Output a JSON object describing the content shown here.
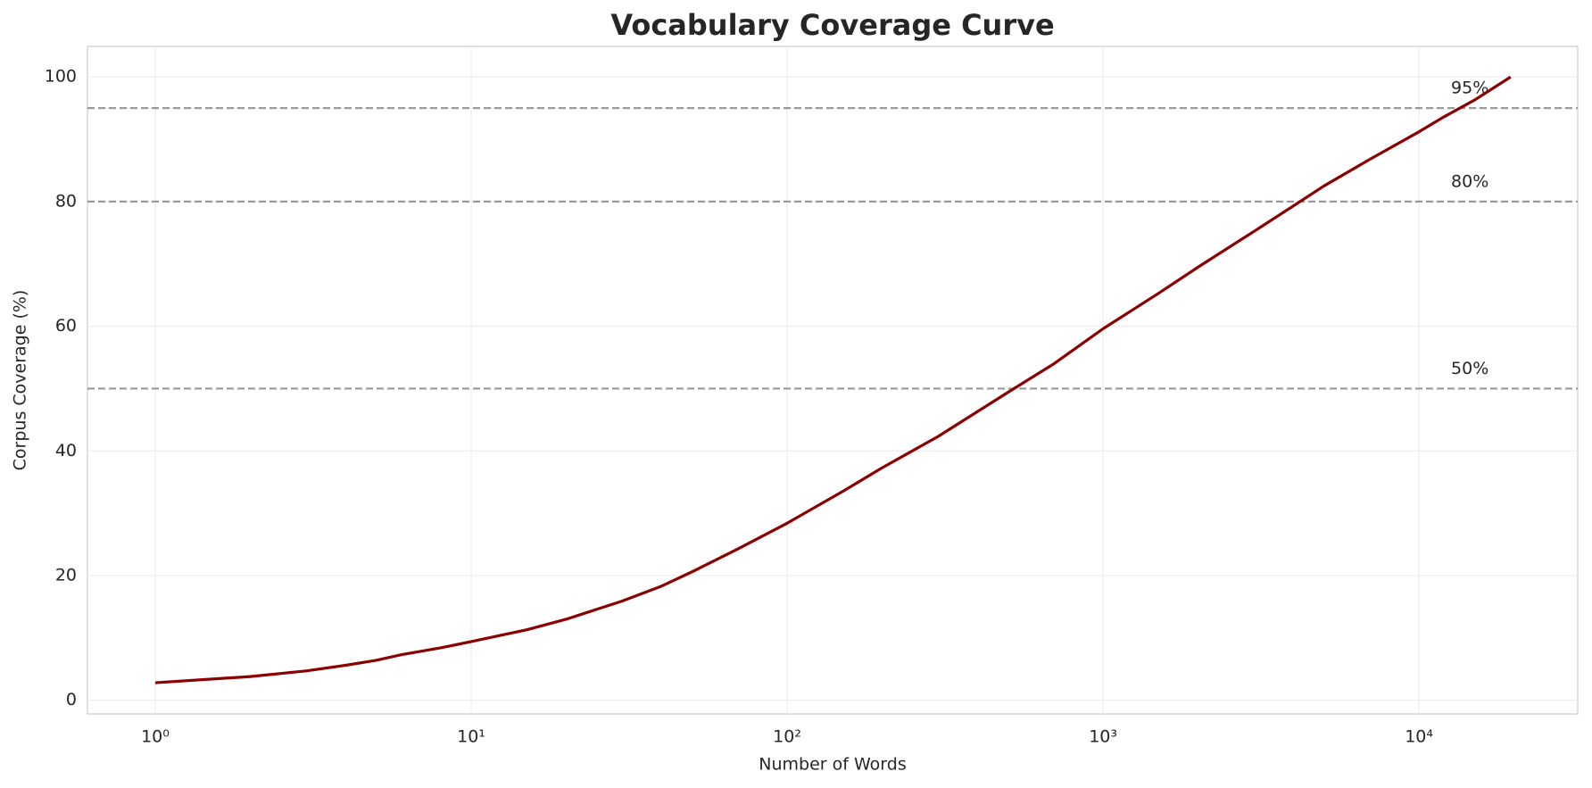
{
  "chart_data": {
    "type": "line",
    "title": "Vocabulary Coverage Curve",
    "x_label": "Number of Words",
    "y_label": "Corpus Coverage (%)",
    "x_scale": "log",
    "grid": true,
    "xlim": [
      0.61,
      31800
    ],
    "ylim": [
      -2.2,
      104.9
    ],
    "xticks": [
      {
        "value": 1,
        "label": "10⁰"
      },
      {
        "value": 10,
        "label": "10¹"
      },
      {
        "value": 100,
        "label": "10²"
      },
      {
        "value": 1000,
        "label": "10³"
      },
      {
        "value": 10000,
        "label": "10⁴"
      }
    ],
    "yticks": [
      0,
      20,
      40,
      60,
      80,
      100
    ],
    "x": [
      1,
      2,
      3,
      4,
      5,
      6,
      8,
      10,
      15,
      20,
      30,
      40,
      50,
      70,
      100,
      150,
      200,
      300,
      500,
      700,
      1000,
      1500,
      2000,
      3000,
      4000,
      5000,
      7000,
      10000,
      12000,
      15000,
      19500
    ],
    "series": [
      {
        "name": "Coverage",
        "color": "#8b0000",
        "values": [
          2.8,
          3.8,
          4.7,
          5.6,
          6.4,
          7.3,
          8.4,
          9.4,
          11.3,
          13.0,
          15.9,
          18.3,
          20.6,
          24.3,
          28.4,
          33.5,
          37.3,
          42.3,
          49.4,
          54.0,
          59.6,
          65.3,
          69.5,
          75.2,
          79.3,
          82.5,
          86.8,
          91.2,
          93.6,
          96.3,
          100
        ]
      }
    ],
    "reference_lines": [
      {
        "value": 50,
        "label": "50%"
      },
      {
        "value": 80,
        "label": "80%"
      },
      {
        "value": 95,
        "label": "95%"
      }
    ],
    "reference_color": "#999999"
  }
}
